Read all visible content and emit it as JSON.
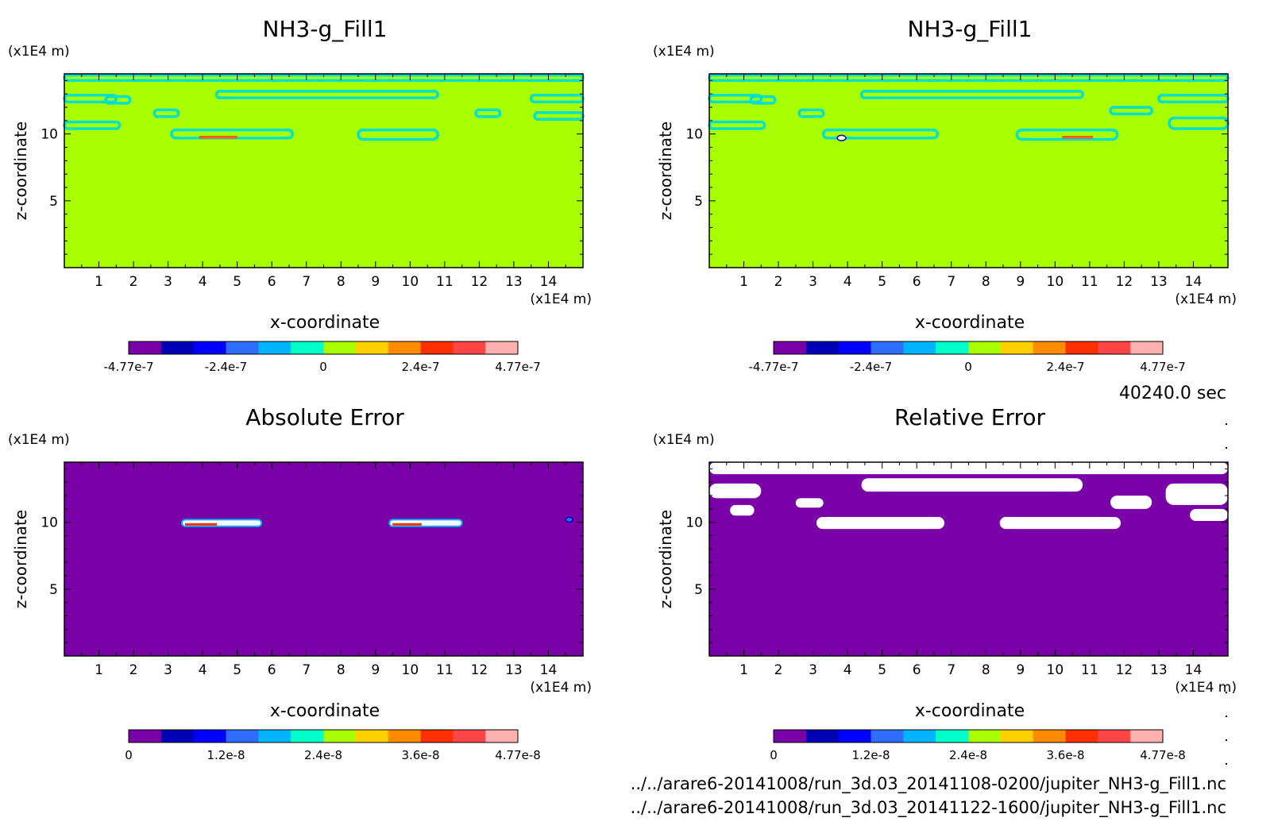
{
  "colormap": [
    "#7a00a8",
    "#0000b4",
    "#0000ff",
    "#2e6eff",
    "#00b4ff",
    "#00ffc8",
    "#a8ff00",
    "#ffd000",
    "#ff8c00",
    "#ff3000",
    "#ff4545",
    "#ffb0b0"
  ],
  "colors": {
    "background": "#a8ff00",
    "band": "#00e0d0",
    "error_fill": "#7a00a8",
    "hole": "#ffffff",
    "hot": "#ff4020"
  },
  "time_label": "40240.0 sec",
  "file_paths": [
    "../../arare6-20141008/run_3d.03_20141108-0200/jupiter_NH3-g_Fill1.nc",
    "../../arare6-20141008/run_3d.03_20141122-1600/jupiter_NH3-g_Fill1.nc"
  ],
  "chart_data": [
    {
      "type": "heatmap",
      "title": "NH3-g_Fill1",
      "xlabel": "x-coordinate",
      "ylabel": "z-coordinate",
      "x_unit": "(x1E4 m)",
      "z_unit": "(x1E4 m)",
      "xlim": [
        0,
        15
      ],
      "ylim": [
        0,
        14.5
      ],
      "x_ticks": [
        1,
        2,
        3,
        4,
        5,
        6,
        7,
        8,
        9,
        10,
        11,
        12,
        13,
        14
      ],
      "z_ticks": [
        5,
        10
      ],
      "colorbar_ticks": [
        "-4.77e-7",
        "-2.4e-7",
        "0",
        "2.4e-7",
        "4.77e-7"
      ],
      "colorbar_range": [
        -4.77e-07,
        4.77e-07
      ],
      "features": [
        {
          "kind": "band",
          "x": [
            0,
            15
          ],
          "z": [
            14.0,
            14.4
          ]
        },
        {
          "kind": "band",
          "x": [
            4.4,
            10.8
          ],
          "z": [
            12.7,
            13.2
          ]
        },
        {
          "kind": "band",
          "x": [
            0,
            1.5
          ],
          "z": [
            12.4,
            12.9
          ]
        },
        {
          "kind": "band",
          "x": [
            1.2,
            1.9
          ],
          "z": [
            12.3,
            12.8
          ]
        },
        {
          "kind": "band",
          "x": [
            2.6,
            3.3
          ],
          "z": [
            11.3,
            11.8
          ]
        },
        {
          "kind": "band",
          "x": [
            0,
            1.6
          ],
          "z": [
            10.4,
            10.9
          ]
        },
        {
          "kind": "band",
          "x": [
            3.1,
            6.6
          ],
          "z": [
            9.7,
            10.3
          ]
        },
        {
          "kind": "band",
          "x": [
            8.5,
            10.8
          ],
          "z": [
            9.6,
            10.3
          ]
        },
        {
          "kind": "band",
          "x": [
            11.9,
            12.6
          ],
          "z": [
            11.3,
            11.8
          ]
        },
        {
          "kind": "band",
          "x": [
            13.5,
            15
          ],
          "z": [
            12.4,
            12.9
          ]
        },
        {
          "kind": "band",
          "x": [
            13.6,
            15
          ],
          "z": [
            11.1,
            11.6
          ]
        },
        {
          "kind": "hot",
          "x": [
            3.9,
            5.0
          ],
          "z": [
            9.65,
            9.85
          ]
        }
      ]
    },
    {
      "type": "heatmap",
      "title": "NH3-g_Fill1",
      "xlabel": "x-coordinate",
      "ylabel": "z-coordinate",
      "x_unit": "(x1E4 m)",
      "z_unit": "(x1E4 m)",
      "xlim": [
        0,
        15
      ],
      "ylim": [
        0,
        14.5
      ],
      "x_ticks": [
        1,
        2,
        3,
        4,
        5,
        6,
        7,
        8,
        9,
        10,
        11,
        12,
        13,
        14
      ],
      "z_ticks": [
        5,
        10
      ],
      "colorbar_ticks": [
        "-4.77e-7",
        "-2.4e-7",
        "0",
        "2.4e-7",
        "4.77e-7"
      ],
      "colorbar_range": [
        -4.77e-07,
        4.77e-07
      ],
      "features": [
        {
          "kind": "band",
          "x": [
            0,
            15
          ],
          "z": [
            14.0,
            14.4
          ]
        },
        {
          "kind": "band",
          "x": [
            4.4,
            10.8
          ],
          "z": [
            12.7,
            13.2
          ]
        },
        {
          "kind": "band",
          "x": [
            0,
            1.5
          ],
          "z": [
            12.4,
            12.9
          ]
        },
        {
          "kind": "band",
          "x": [
            1.2,
            1.9
          ],
          "z": [
            12.3,
            12.8
          ]
        },
        {
          "kind": "band",
          "x": [
            2.6,
            3.3
          ],
          "z": [
            11.3,
            11.8
          ]
        },
        {
          "kind": "band",
          "x": [
            0,
            1.6
          ],
          "z": [
            10.4,
            10.9
          ]
        },
        {
          "kind": "band",
          "x": [
            3.3,
            6.6
          ],
          "z": [
            9.7,
            10.3
          ]
        },
        {
          "kind": "band",
          "x": [
            8.9,
            11.8
          ],
          "z": [
            9.6,
            10.3
          ]
        },
        {
          "kind": "band",
          "x": [
            11.6,
            12.8
          ],
          "z": [
            11.5,
            12.0
          ]
        },
        {
          "kind": "band",
          "x": [
            13.0,
            15
          ],
          "z": [
            12.4,
            12.9
          ]
        },
        {
          "kind": "band",
          "x": [
            13.3,
            15
          ],
          "z": [
            10.4,
            11.2
          ]
        },
        {
          "kind": "hot",
          "x": [
            10.2,
            11.1
          ],
          "z": [
            9.65,
            9.85
          ]
        },
        {
          "kind": "spot",
          "x": [
            3.7,
            3.95
          ],
          "z": [
            9.5,
            9.9
          ]
        }
      ]
    },
    {
      "type": "heatmap",
      "title": "Absolute Error",
      "xlabel": "x-coordinate",
      "ylabel": "z-coordinate",
      "x_unit": "(x1E4 m)",
      "z_unit": "(x1E4 m)",
      "xlim": [
        0,
        15
      ],
      "ylim": [
        0,
        14.5
      ],
      "x_ticks": [
        1,
        2,
        3,
        4,
        5,
        6,
        7,
        8,
        9,
        10,
        11,
        12,
        13,
        14
      ],
      "z_ticks": [
        5,
        10
      ],
      "colorbar_ticks": [
        "0",
        "1.2e-8",
        "2.4e-8",
        "3.6e-8",
        "4.77e-8"
      ],
      "colorbar_range": [
        0,
        4.77e-08
      ],
      "features": [
        {
          "kind": "hole",
          "x": [
            3.4,
            5.7
          ],
          "z": [
            9.7,
            10.2
          ]
        },
        {
          "kind": "hole",
          "x": [
            9.4,
            11.5
          ],
          "z": [
            9.7,
            10.2
          ]
        },
        {
          "kind": "spot",
          "x": [
            14.5,
            14.7
          ],
          "z": [
            10.1,
            10.3
          ]
        }
      ]
    },
    {
      "type": "heatmap",
      "title": "Relative Error",
      "xlabel": "x-coordinate",
      "ylabel": "z-coordinate",
      "x_unit": "(x1E4 m)",
      "z_unit": "(x1E4 m)",
      "xlim": [
        0,
        15
      ],
      "ylim": [
        0,
        14.5
      ],
      "x_ticks": [
        1,
        2,
        3,
        4,
        5,
        6,
        7,
        8,
        9,
        10,
        11,
        12,
        13,
        14
      ],
      "z_ticks": [
        5,
        10
      ],
      "colorbar_ticks": [
        "0",
        "1.2e-8",
        "2.4e-8",
        "3.6e-8",
        "4.77e-8"
      ],
      "colorbar_range": [
        0,
        4.77e-08
      ],
      "features": [
        {
          "kind": "hole",
          "x": [
            0,
            15
          ],
          "z": [
            13.6,
            14.5
          ]
        },
        {
          "kind": "hole",
          "x": [
            4.4,
            10.8
          ],
          "z": [
            12.3,
            13.3
          ]
        },
        {
          "kind": "hole",
          "x": [
            0,
            1.5
          ],
          "z": [
            11.8,
            12.9
          ]
        },
        {
          "kind": "hole",
          "x": [
            0.6,
            1.3
          ],
          "z": [
            10.5,
            11.3
          ]
        },
        {
          "kind": "hole",
          "x": [
            2.5,
            3.3
          ],
          "z": [
            11.1,
            11.8
          ]
        },
        {
          "kind": "hole",
          "x": [
            3.1,
            6.8
          ],
          "z": [
            9.5,
            10.4
          ]
        },
        {
          "kind": "hole",
          "x": [
            8.4,
            11.9
          ],
          "z": [
            9.5,
            10.4
          ]
        },
        {
          "kind": "hole",
          "x": [
            11.6,
            12.8
          ],
          "z": [
            11.0,
            12.0
          ]
        },
        {
          "kind": "hole",
          "x": [
            13.2,
            15
          ],
          "z": [
            11.3,
            12.9
          ]
        },
        {
          "kind": "hole",
          "x": [
            13.9,
            15
          ],
          "z": [
            10.1,
            11.0
          ]
        }
      ]
    }
  ]
}
